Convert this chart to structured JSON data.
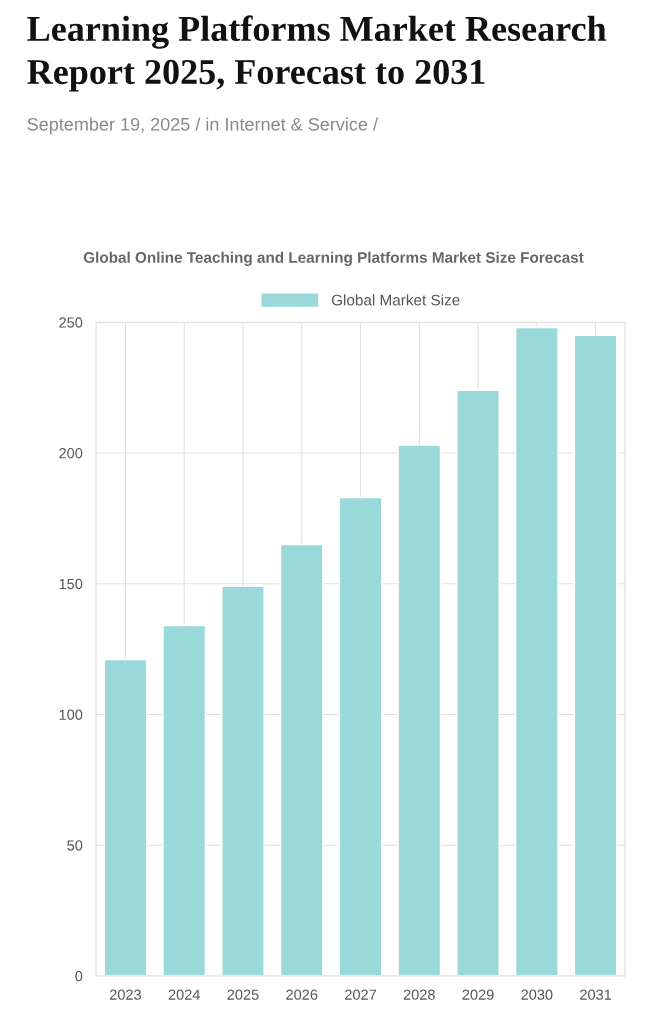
{
  "chart_data": {
    "type": "bar",
    "title": "Learning Platforms Market Research Report 2025, Forecast to 2031",
    "subtitle": "September 19, 2025 / in Internet & Service /",
    "annotations": [
      "Global Online Teaching and Learning Platforms Market Size Forecast"
    ],
    "categories": [
      "2023",
      "2024",
      "2025",
      "2026",
      "2027",
      "2028",
      "2029",
      "2030",
      "2031"
    ],
    "series": [
      {
        "name": "Global Market Size",
        "color": "#9ad9d9",
        "values": [
          121,
          134,
          149,
          165,
          183,
          203,
          224,
          248,
          245
        ]
      }
    ],
    "ylim": [
      0,
      250
    ],
    "yticks": [
      0,
      50,
      100,
      150,
      200,
      250
    ],
    "grid": true,
    "legend": "top"
  }
}
